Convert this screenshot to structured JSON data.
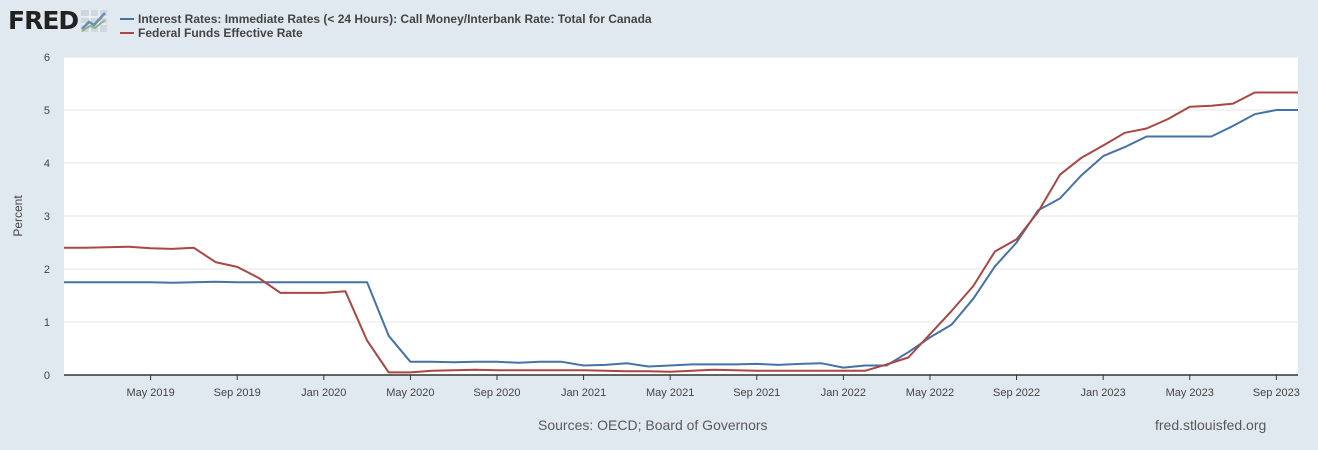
{
  "header": {
    "logo_text": "FRED",
    "logo_icon": "trend-graph-icon"
  },
  "chart_data": {
    "type": "line",
    "xlabel": "",
    "ylabel": "Percent",
    "ylim": [
      0,
      6
    ],
    "y_ticks": [
      "0",
      "1",
      "2",
      "3",
      "4",
      "5",
      "6"
    ],
    "x_ticks": [
      "May 2019",
      "Sep 2019",
      "Jan 2020",
      "May 2020",
      "Sep 2020",
      "Jan 2021",
      "May 2021",
      "Sep 2021",
      "Jan 2022",
      "May 2022",
      "Sep 2022",
      "Jan 2023",
      "May 2023",
      "Sep 2023"
    ],
    "x_tick_index": [
      4,
      8,
      12,
      16,
      20,
      24,
      28,
      32,
      36,
      40,
      44,
      48,
      52,
      56
    ],
    "grid": true,
    "legend_position": "top-left",
    "x": [
      "2019-01",
      "2019-02",
      "2019-03",
      "2019-04",
      "2019-05",
      "2019-06",
      "2019-07",
      "2019-08",
      "2019-09",
      "2019-10",
      "2019-11",
      "2019-12",
      "2020-01",
      "2020-02",
      "2020-03",
      "2020-04",
      "2020-05",
      "2020-06",
      "2020-07",
      "2020-08",
      "2020-09",
      "2020-10",
      "2020-11",
      "2020-12",
      "2021-01",
      "2021-02",
      "2021-03",
      "2021-04",
      "2021-05",
      "2021-06",
      "2021-07",
      "2021-08",
      "2021-09",
      "2021-10",
      "2021-11",
      "2021-12",
      "2022-01",
      "2022-02",
      "2022-03",
      "2022-04",
      "2022-05",
      "2022-06",
      "2022-07",
      "2022-08",
      "2022-09",
      "2022-10",
      "2022-11",
      "2022-12",
      "2023-01",
      "2023-02",
      "2023-03",
      "2023-04",
      "2023-05",
      "2023-06",
      "2023-07",
      "2023-08",
      "2023-09",
      "2023-10"
    ],
    "series": [
      {
        "name": "Interest Rates: Immediate Rates (< 24 Hours): Call Money/Interbank Rate: Total for Canada",
        "color": "#4572a7",
        "values": [
          1.75,
          1.75,
          1.75,
          1.75,
          1.75,
          1.74,
          1.75,
          1.76,
          1.75,
          1.75,
          1.75,
          1.75,
          1.75,
          1.75,
          1.75,
          0.74,
          0.25,
          0.25,
          0.24,
          0.25,
          0.25,
          0.23,
          0.25,
          0.25,
          0.18,
          0.19,
          0.22,
          0.16,
          0.18,
          0.2,
          0.2,
          0.2,
          0.21,
          0.19,
          0.21,
          0.22,
          0.14,
          0.18,
          0.18,
          0.43,
          0.71,
          0.95,
          1.44,
          2.05,
          2.5,
          3.11,
          3.33,
          3.77,
          4.13,
          4.3,
          4.5,
          4.5,
          4.5,
          4.5,
          4.7,
          4.92,
          5.0,
          5.0
        ]
      },
      {
        "name": "Federal Funds Effective Rate",
        "color": "#aa4643",
        "values": [
          2.4,
          2.4,
          2.41,
          2.42,
          2.39,
          2.38,
          2.4,
          2.13,
          2.04,
          1.83,
          1.55,
          1.55,
          1.55,
          1.58,
          0.65,
          0.05,
          0.05,
          0.08,
          0.09,
          0.1,
          0.09,
          0.09,
          0.09,
          0.09,
          0.09,
          0.08,
          0.07,
          0.07,
          0.06,
          0.08,
          0.1,
          0.09,
          0.08,
          0.08,
          0.08,
          0.08,
          0.08,
          0.08,
          0.2,
          0.33,
          0.77,
          1.21,
          1.68,
          2.33,
          2.56,
          3.08,
          3.78,
          4.1,
          4.33,
          4.57,
          4.65,
          4.83,
          5.06,
          5.08,
          5.12,
          5.33,
          5.33,
          5.33
        ]
      }
    ]
  },
  "footer": {
    "sources": "Sources: OECD; Board of Governors",
    "url": "fred.stlouisfed.org"
  }
}
